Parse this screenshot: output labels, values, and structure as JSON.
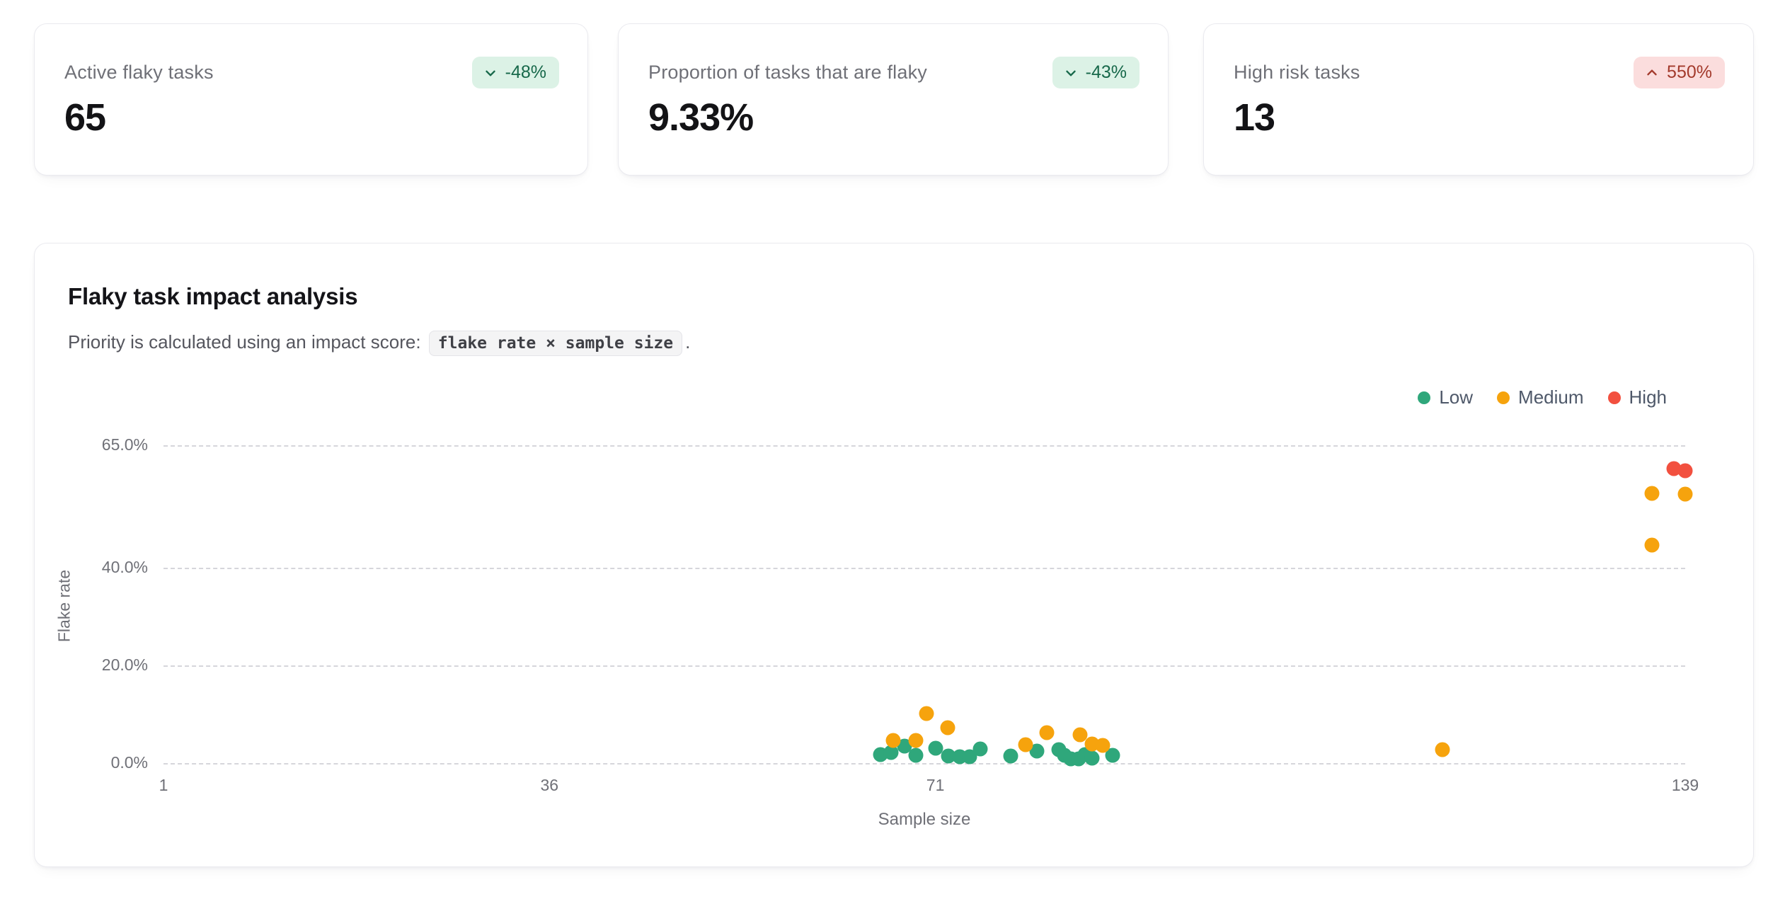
{
  "kpis": [
    {
      "label": "Active flaky tasks",
      "value": "65",
      "badge": {
        "text": "-48%",
        "direction": "down",
        "tone": "positive"
      }
    },
    {
      "label": "Proportion of tasks that are flaky",
      "value": "9.33%",
      "badge": {
        "text": "-43%",
        "direction": "down",
        "tone": "positive"
      }
    },
    {
      "label": "High risk tasks",
      "value": "13",
      "badge": {
        "text": "550%",
        "direction": "up",
        "tone": "negative"
      }
    }
  ],
  "chart_card": {
    "title": "Flaky task impact analysis",
    "subtitle_prefix": "Priority is calculated using an impact score: ",
    "subtitle_code": "flake rate × sample size",
    "subtitle_suffix": "."
  },
  "chart_data": {
    "type": "scatter",
    "title": "Flaky task impact analysis",
    "xlabel": "Sample size",
    "ylabel": "Flake rate",
    "xlim": [
      1,
      139
    ],
    "ylim": [
      0,
      65
    ],
    "x_ticks": [
      {
        "value": 1,
        "label": "1"
      },
      {
        "value": 36,
        "label": "36"
      },
      {
        "value": 71,
        "label": "71"
      },
      {
        "value": 139,
        "label": "139"
      }
    ],
    "y_ticks": [
      {
        "value": 0,
        "label": "0.0%"
      },
      {
        "value": 20,
        "label": "20.0%"
      },
      {
        "value": 40,
        "label": "40.0%"
      },
      {
        "value": 65,
        "label": "65.0%"
      }
    ],
    "grid": "horizontal-dashed",
    "legend_position": "top-right",
    "series": [
      {
        "name": "Low",
        "color": "#2fa77b",
        "points": [
          [
            66,
            1.7
          ],
          [
            67,
            2.1
          ],
          [
            68.2,
            3.5
          ],
          [
            69.2,
            1.6
          ],
          [
            71,
            3.0
          ],
          [
            72.2,
            1.5
          ],
          [
            73.2,
            1.3
          ],
          [
            74.1,
            1.3
          ],
          [
            75.1,
            2.9
          ],
          [
            77.8,
            1.4
          ],
          [
            80.2,
            2.5
          ],
          [
            82.2,
            2.8
          ],
          [
            82.7,
            1.6
          ],
          [
            83.3,
            0.9
          ],
          [
            84,
            0.9
          ],
          [
            84.6,
            1.8
          ],
          [
            85.2,
            1.0
          ],
          [
            87.1,
            1.6
          ]
        ]
      },
      {
        "name": "Medium",
        "color": "#f6a30d",
        "points": [
          [
            67.2,
            4.6
          ],
          [
            69.2,
            4.6
          ],
          [
            70.2,
            10.2
          ],
          [
            72.1,
            7.3
          ],
          [
            79.2,
            3.8
          ],
          [
            81.1,
            6.2
          ],
          [
            84.1,
            5.8
          ],
          [
            85.2,
            3.9
          ],
          [
            86.2,
            3.6
          ],
          [
            117,
            2.7
          ],
          [
            136,
            55.2
          ],
          [
            139,
            55.0
          ],
          [
            136,
            44.6
          ]
        ]
      },
      {
        "name": "High",
        "color": "#f2503f",
        "points": [
          [
            138,
            60.2
          ],
          [
            139,
            59.8
          ]
        ]
      }
    ]
  },
  "colors": {
    "badge_positive_bg": "#dcf2e6",
    "badge_positive_text": "#17684a",
    "badge_negative_bg": "#fbdddd",
    "badge_negative_text": "#a33a2c",
    "low": "#2fa77b",
    "medium": "#f6a30d",
    "high": "#f2503f",
    "gridline": "#d6d6db"
  }
}
